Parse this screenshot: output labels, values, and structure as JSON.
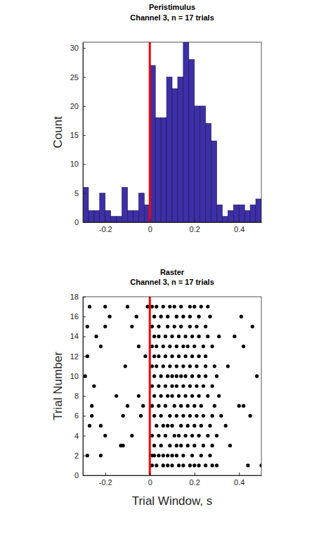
{
  "chart_data": [
    {
      "type": "histogram",
      "title": "Peristimulus",
      "subtitle": "Channel 3, n = 17 trials",
      "ylabel": "Count",
      "color": "#3d2fa6",
      "stimulus_x": 0,
      "stimulus_color": "#ff0000",
      "bins": [
        -0.3,
        -0.275,
        -0.25,
        -0.225,
        -0.2,
        -0.175,
        -0.15,
        -0.125,
        -0.1,
        -0.075,
        -0.05,
        -0.025,
        0,
        0.025,
        0.05,
        0.075,
        0.1,
        0.125,
        0.15,
        0.175,
        0.2,
        0.225,
        0.25,
        0.275,
        0.3,
        0.325,
        0.35,
        0.375,
        0.4,
        0.425,
        0.45,
        0.475,
        0.5
      ],
      "values": [
        6,
        2,
        2,
        5,
        2,
        1,
        1,
        6,
        2,
        2,
        5,
        3,
        27,
        18,
        18,
        25,
        23,
        25,
        31,
        28,
        20,
        20,
        17,
        14,
        3,
        1,
        2,
        3,
        3,
        2,
        3,
        4
      ],
      "xlim": [
        -0.3,
        0.5
      ],
      "xticks": [
        -0.2,
        0,
        0.2,
        0.4
      ],
      "ylim": [
        0,
        31
      ],
      "yticks": [
        0,
        5,
        10,
        15,
        20,
        25,
        30
      ]
    },
    {
      "type": "scatter",
      "title": "Raster",
      "subtitle": "Channel 3, n = 17 trials",
      "xlabel": "Trial Window, s",
      "ylabel": "Trial Number",
      "color": "#000000",
      "marker": "circle",
      "stimulus_x": 0,
      "stimulus_color": "#ff0000",
      "x": [
        0.01,
        0.03,
        0.06,
        0.08,
        0.1,
        0.13,
        0.15,
        0.18,
        0.2,
        0.22,
        0.25,
        0.28,
        0.3,
        0.44,
        0.5,
        -0.28,
        -0.22,
        0.01,
        0.02,
        0.04,
        0.06,
        0.08,
        0.1,
        0.12,
        0.15,
        0.19,
        0.23,
        0.27,
        -0.13,
        -0.12,
        0.02,
        0.05,
        0.09,
        0.12,
        0.14,
        0.17,
        0.2,
        0.24,
        0.28,
        0.36,
        -0.2,
        -0.08,
        0.01,
        0.04,
        0.07,
        0.11,
        0.13,
        0.16,
        0.19,
        0.22,
        0.26,
        0.3,
        -0.27,
        -0.22,
        0.03,
        0.06,
        0.08,
        0.1,
        0.14,
        0.17,
        0.2,
        0.23,
        0.27,
        0.34,
        -0.26,
        -0.12,
        -0.04,
        0.02,
        0.05,
        0.09,
        0.12,
        0.15,
        0.18,
        0.21,
        0.24,
        0.28,
        0.32,
        0.45,
        -0.26,
        -0.1,
        -0.03,
        0.01,
        0.04,
        0.07,
        0.11,
        0.14,
        0.17,
        0.2,
        0.23,
        0.29,
        0.4,
        0.42,
        -0.15,
        -0.05,
        0.02,
        0.05,
        0.08,
        0.1,
        0.13,
        0.16,
        0.19,
        0.22,
        0.26,
        0.31,
        -0.25,
        0.01,
        0.04,
        0.07,
        0.1,
        0.12,
        0.15,
        0.18,
        0.21,
        0.24,
        0.28,
        -0.29,
        0.02,
        0.05,
        0.08,
        0.1,
        0.12,
        0.14,
        0.16,
        0.19,
        0.22,
        0.25,
        0.3,
        0.48,
        -0.11,
        0.01,
        0.03,
        0.06,
        0.09,
        0.12,
        0.15,
        0.18,
        0.21,
        0.25,
        0.29,
        0.35,
        -0.28,
        -0.02,
        0.02,
        0.04,
        0.07,
        0.1,
        0.13,
        0.16,
        0.19,
        0.22,
        0.25,
        -0.22,
        -0.05,
        0.01,
        0.03,
        0.06,
        0.09,
        0.12,
        0.15,
        0.17,
        0.2,
        0.24,
        0.28,
        0.42,
        -0.24,
        0.02,
        0.04,
        0.07,
        0.1,
        0.13,
        0.16,
        0.19,
        0.22,
        0.26,
        0.31,
        0.38,
        -0.28,
        -0.2,
        -0.08,
        0.01,
        0.04,
        0.08,
        0.11,
        0.14,
        0.18,
        0.21,
        0.25,
        0.46,
        -0.18,
        -0.06,
        0.02,
        0.05,
        0.08,
        0.12,
        0.15,
        0.18,
        0.22,
        0.27,
        0.41,
        -0.27,
        -0.2,
        -0.1,
        -0.01,
        0.01,
        0.03,
        0.06,
        0.09,
        0.11,
        0.14,
        0.18,
        0.2,
        0.23,
        0.26
      ],
      "values": [
        1,
        1,
        1,
        1,
        1,
        1,
        1,
        1,
        1,
        1,
        1,
        1,
        1,
        1,
        1,
        2,
        2,
        2,
        2,
        2,
        2,
        2,
        2,
        2,
        2,
        2,
        2,
        2,
        3,
        3,
        3,
        3,
        3,
        3,
        3,
        3,
        3,
        3,
        3,
        3,
        4,
        4,
        4,
        4,
        4,
        4,
        4,
        4,
        4,
        4,
        4,
        4,
        5,
        5,
        5,
        5,
        5,
        5,
        5,
        5,
        5,
        5,
        5,
        5,
        6,
        6,
        6,
        6,
        6,
        6,
        6,
        6,
        6,
        6,
        6,
        6,
        6,
        6,
        7,
        7,
        7,
        7,
        7,
        7,
        7,
        7,
        7,
        7,
        7,
        7,
        7,
        7,
        8,
        8,
        8,
        8,
        8,
        8,
        8,
        8,
        8,
        8,
        8,
        8,
        9,
        9,
        9,
        9,
        9,
        9,
        9,
        9,
        9,
        9,
        9,
        10,
        10,
        10,
        10,
        10,
        10,
        10,
        10,
        10,
        10,
        10,
        10,
        10,
        11,
        11,
        11,
        11,
        11,
        11,
        11,
        11,
        11,
        11,
        11,
        11,
        12,
        12,
        12,
        12,
        12,
        12,
        12,
        12,
        12,
        12,
        12,
        13,
        13,
        13,
        13,
        13,
        13,
        13,
        13,
        13,
        13,
        13,
        13,
        13,
        14,
        14,
        14,
        14,
        14,
        14,
        14,
        14,
        14,
        14,
        14,
        14,
        15,
        15,
        15,
        15,
        15,
        15,
        15,
        15,
        15,
        15,
        15,
        15,
        16,
        16,
        16,
        16,
        16,
        16,
        16,
        16,
        16,
        16,
        16,
        17,
        17,
        17,
        17,
        17,
        17,
        17,
        17,
        17,
        17,
        17,
        17,
        17,
        17
      ],
      "xlim": [
        -0.3,
        0.5
      ],
      "xticks": [
        -0.2,
        0,
        0.2,
        0.4
      ],
      "ylim": [
        0,
        18
      ],
      "yticks": [
        0,
        2,
        4,
        6,
        8,
        10,
        12,
        14,
        16,
        18
      ]
    }
  ]
}
